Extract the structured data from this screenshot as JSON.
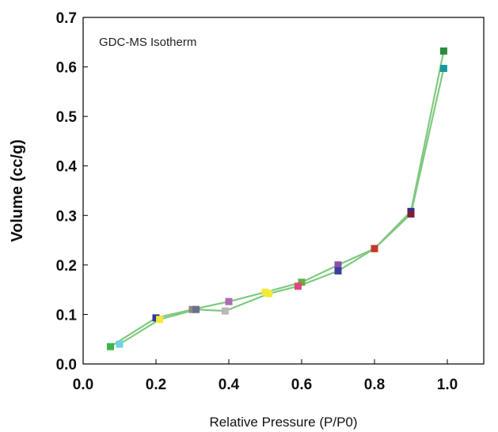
{
  "chart_data": {
    "type": "line",
    "title": "GDC-MS Isotherm",
    "xlabel": "Relative Pressure (P/P0)",
    "ylabel": "Volume  (cc/g)",
    "xlim": [
      0.0,
      1.1
    ],
    "ylim": [
      0.0,
      0.7
    ],
    "xticks": [
      "0.0",
      "0.2",
      "0.4",
      "0.6",
      "0.8",
      "1.0"
    ],
    "yticks": [
      "0.0",
      "0.1",
      "0.2",
      "0.3",
      "0.4",
      "0.5",
      "0.6",
      "0.7"
    ],
    "grid": false,
    "line_color": "#7fc97f",
    "series": [
      {
        "points": [
          {
            "x": 0.075,
            "y": 0.035,
            "color": "#3cb54a"
          },
          {
            "x": 0.2,
            "y": 0.093,
            "color": "#2e3a9e"
          },
          {
            "x": 0.3,
            "y": 0.11,
            "color": "#8a8a8a"
          },
          {
            "x": 0.4,
            "y": 0.126,
            "color": "#b06ab3"
          },
          {
            "x": 0.5,
            "y": 0.145,
            "color": "#f2ea3a"
          },
          {
            "x": 0.6,
            "y": 0.165,
            "color": "#6aab3c"
          },
          {
            "x": 0.7,
            "y": 0.2,
            "color": "#8a4fa8"
          },
          {
            "x": 0.8,
            "y": 0.233,
            "color": "#f08a2c"
          },
          {
            "x": 0.9,
            "y": 0.308,
            "color": "#2d2f8f"
          },
          {
            "x": 0.99,
            "y": 0.632,
            "color": "#2e8b3a"
          }
        ]
      },
      {
        "points": [
          {
            "x": 0.1,
            "y": 0.04,
            "color": "#6fd3e8"
          },
          {
            "x": 0.21,
            "y": 0.09,
            "color": "#f2ea3a"
          },
          {
            "x": 0.31,
            "y": 0.11,
            "color": "#6e6e8a"
          },
          {
            "x": 0.39,
            "y": 0.107,
            "color": "#b8b8b8"
          },
          {
            "x": 0.51,
            "y": 0.142,
            "color": "#f2ea3a"
          },
          {
            "x": 0.59,
            "y": 0.157,
            "color": "#e0457b"
          },
          {
            "x": 0.7,
            "y": 0.188,
            "color": "#3a3f9e"
          },
          {
            "x": 0.8,
            "y": 0.233,
            "color": "#c0392b"
          },
          {
            "x": 0.9,
            "y": 0.303,
            "color": "#7a1f3d"
          },
          {
            "x": 0.99,
            "y": 0.597,
            "color": "#159a9c"
          }
        ]
      }
    ]
  }
}
